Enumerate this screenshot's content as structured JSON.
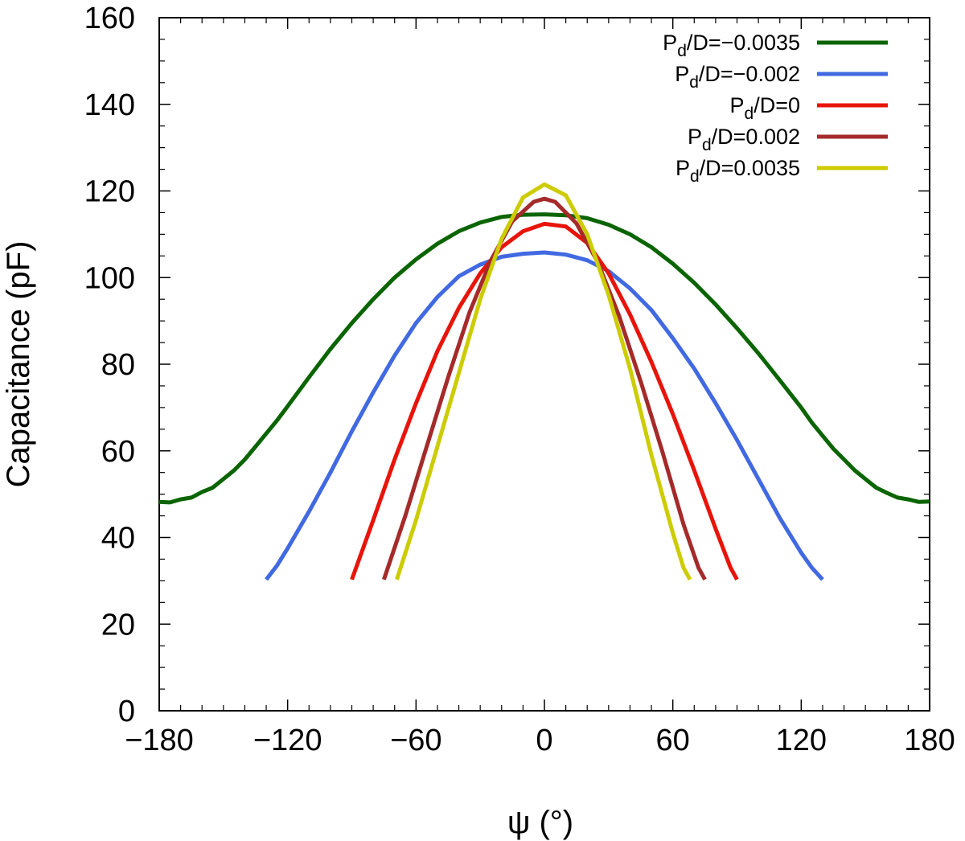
{
  "chart_data": {
    "type": "line",
    "xlabel": "ψ (°)",
    "ylabel": "Capacitance (pF)",
    "xlim": [
      -180,
      180
    ],
    "ylim": [
      0,
      160
    ],
    "x_ticks": [
      -180,
      -120,
      -60,
      0,
      60,
      120,
      180
    ],
    "x_tick_labels": [
      "−180",
      "−120",
      "−60",
      "0",
      "60",
      "120",
      "180"
    ],
    "y_ticks": [
      0,
      20,
      40,
      60,
      80,
      100,
      120,
      140,
      160
    ],
    "y_tick_labels": [
      "0",
      "20",
      "40",
      "60",
      "80",
      "100",
      "120",
      "140",
      "160"
    ],
    "legend_position": "top-right",
    "grid": false,
    "series": [
      {
        "name": "Pd/D=−0.0035",
        "legend": {
          "main": "P",
          "sub": "d",
          "rest": "/D=−0.0035"
        },
        "color": "#0a6400",
        "points": [
          [
            -180,
            48.2
          ],
          [
            -175,
            48.1
          ],
          [
            -170,
            48.8
          ],
          [
            -165,
            49.2
          ],
          [
            -160,
            50.5
          ],
          [
            -155,
            51.5
          ],
          [
            -150,
            53.5
          ],
          [
            -145,
            55.5
          ],
          [
            -140,
            58
          ],
          [
            -135,
            61
          ],
          [
            -130,
            64
          ],
          [
            -125,
            67
          ],
          [
            -120,
            70.3
          ],
          [
            -110,
            77
          ],
          [
            -100,
            83.5
          ],
          [
            -90,
            89.5
          ],
          [
            -80,
            95
          ],
          [
            -70,
            100
          ],
          [
            -60,
            104.2
          ],
          [
            -50,
            107.8
          ],
          [
            -40,
            110.7
          ],
          [
            -30,
            112.7
          ],
          [
            -20,
            114
          ],
          [
            -10,
            114.5
          ],
          [
            0,
            114.6
          ],
          [
            10,
            114.4
          ],
          [
            20,
            113.7
          ],
          [
            30,
            112.2
          ],
          [
            40,
            110
          ],
          [
            50,
            107
          ],
          [
            60,
            103.2
          ],
          [
            70,
            98.8
          ],
          [
            80,
            93.8
          ],
          [
            90,
            88.3
          ],
          [
            100,
            82.5
          ],
          [
            110,
            76.3
          ],
          [
            120,
            70
          ],
          [
            125,
            66.5
          ],
          [
            130,
            63.5
          ],
          [
            135,
            60.5
          ],
          [
            140,
            58
          ],
          [
            145,
            55.5
          ],
          [
            150,
            53.5
          ],
          [
            155,
            51.5
          ],
          [
            160,
            50.3
          ],
          [
            165,
            49.2
          ],
          [
            170,
            48.8
          ],
          [
            175,
            48.2
          ],
          [
            180,
            48.3
          ]
        ]
      },
      {
        "name": "Pd/D=−0.002",
        "legend": {
          "main": "P",
          "sub": "d",
          "rest": "/D=−0.002"
        },
        "color": "#4169e1",
        "points": [
          [
            -130,
            30.3
          ],
          [
            -125,
            33.5
          ],
          [
            -120,
            37.5
          ],
          [
            -110,
            46
          ],
          [
            -100,
            55
          ],
          [
            -90,
            64.5
          ],
          [
            -80,
            73.5
          ],
          [
            -70,
            82
          ],
          [
            -60,
            89.5
          ],
          [
            -50,
            95.5
          ],
          [
            -40,
            100.3
          ],
          [
            -30,
            103
          ],
          [
            -20,
            104.8
          ],
          [
            -10,
            105.5
          ],
          [
            0,
            105.8
          ],
          [
            10,
            105.3
          ],
          [
            20,
            104
          ],
          [
            30,
            101.5
          ],
          [
            40,
            97.5
          ],
          [
            50,
            92.5
          ],
          [
            60,
            86
          ],
          [
            70,
            79
          ],
          [
            80,
            71
          ],
          [
            90,
            62.5
          ],
          [
            100,
            53.5
          ],
          [
            110,
            44.5
          ],
          [
            120,
            36.5
          ],
          [
            125,
            33
          ],
          [
            130,
            30.3
          ]
        ]
      },
      {
        "name": "Pd/D=0",
        "legend": {
          "main": "P",
          "sub": "d",
          "rest": "/D=0"
        },
        "color": "#e8140a",
        "points": [
          [
            -90,
            30.3
          ],
          [
            -80,
            44
          ],
          [
            -70,
            58
          ],
          [
            -60,
            71
          ],
          [
            -50,
            83
          ],
          [
            -40,
            93
          ],
          [
            -30,
            101
          ],
          [
            -20,
            107
          ],
          [
            -10,
            110.7
          ],
          [
            0,
            112.4
          ],
          [
            10,
            111.8
          ],
          [
            20,
            108
          ],
          [
            30,
            101
          ],
          [
            40,
            91.5
          ],
          [
            50,
            80.5
          ],
          [
            60,
            68.5
          ],
          [
            70,
            55.5
          ],
          [
            80,
            42
          ],
          [
            87,
            33
          ],
          [
            90,
            30.3
          ]
        ]
      },
      {
        "name": "Pd/D=0.002",
        "legend": {
          "main": "P",
          "sub": "d",
          "rest": "/D=0.002"
        },
        "color": "#a52a2a",
        "points": [
          [
            -75,
            30.3
          ],
          [
            -65,
            45
          ],
          [
            -55,
            61
          ],
          [
            -45,
            77
          ],
          [
            -35,
            92
          ],
          [
            -25,
            104
          ],
          [
            -15,
            113
          ],
          [
            -5,
            117.5
          ],
          [
            0,
            118.2
          ],
          [
            5,
            117.5
          ],
          [
            15,
            112.5
          ],
          [
            25,
            103.5
          ],
          [
            35,
            91
          ],
          [
            45,
            76
          ],
          [
            55,
            60
          ],
          [
            65,
            43
          ],
          [
            72,
            33
          ],
          [
            75,
            30.3
          ]
        ]
      },
      {
        "name": "Pd/D=0.0035",
        "legend": {
          "main": "P",
          "sub": "d",
          "rest": "/D=0.0035"
        },
        "color": "#cccc00",
        "points": [
          [
            -69,
            30.3
          ],
          [
            -60,
            44
          ],
          [
            -50,
            61
          ],
          [
            -40,
            78
          ],
          [
            -30,
            95
          ],
          [
            -20,
            109
          ],
          [
            -10,
            118.5
          ],
          [
            0,
            121.5
          ],
          [
            10,
            119
          ],
          [
            20,
            110
          ],
          [
            30,
            96
          ],
          [
            40,
            79
          ],
          [
            50,
            59
          ],
          [
            60,
            41
          ],
          [
            65,
            33
          ],
          [
            68,
            30.3
          ]
        ]
      }
    ]
  }
}
